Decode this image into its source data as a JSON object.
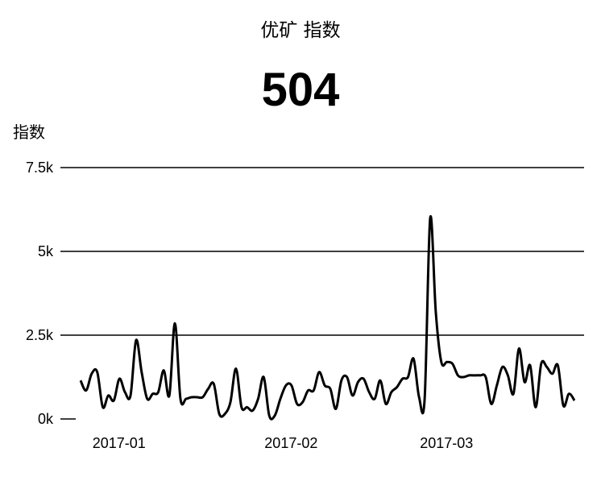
{
  "title": "优矿 指数",
  "headline_value": "504",
  "chart_data": {
    "type": "line",
    "title": "优矿 指数",
    "ylabel": "指数",
    "xlabel": "",
    "y_ticks": [
      {
        "value": 0,
        "label": "0k"
      },
      {
        "value": 2500,
        "label": "2.5k"
      },
      {
        "value": 5000,
        "label": "5k"
      },
      {
        "value": 7500,
        "label": "7.5k"
      }
    ],
    "ylim": [
      0,
      7500
    ],
    "x_ticks": [
      {
        "value": "2017-01-01",
        "label": "2017-01"
      },
      {
        "value": "2017-02-01",
        "label": "2017-02"
      },
      {
        "value": "2017-03-01",
        "label": "2017-03"
      }
    ],
    "xlim": [
      "2016-12-30",
      "2017-03-30"
    ],
    "grid": true,
    "series": [
      {
        "color": "#000000",
        "points": [
          [
            "2016-12-30",
            1150
          ],
          [
            "2016-12-31",
            850
          ],
          [
            "2017-01-01",
            1350
          ],
          [
            "2017-01-02",
            1400
          ],
          [
            "2017-01-03",
            350
          ],
          [
            "2017-01-04",
            700
          ],
          [
            "2017-01-05",
            550
          ],
          [
            "2017-01-06",
            1200
          ],
          [
            "2017-01-07",
            800
          ],
          [
            "2017-01-08",
            700
          ],
          [
            "2017-01-09",
            2350
          ],
          [
            "2017-01-10",
            1400
          ],
          [
            "2017-01-11",
            600
          ],
          [
            "2017-01-12",
            750
          ],
          [
            "2017-01-13",
            800
          ],
          [
            "2017-01-14",
            1450
          ],
          [
            "2017-01-15",
            700
          ],
          [
            "2017-01-16",
            2850
          ],
          [
            "2017-01-17",
            600
          ],
          [
            "2017-01-18",
            600
          ],
          [
            "2017-01-19",
            650
          ],
          [
            "2017-01-20",
            650
          ],
          [
            "2017-01-21",
            650
          ],
          [
            "2017-01-22",
            900
          ],
          [
            "2017-01-23",
            1050
          ],
          [
            "2017-01-24",
            150
          ],
          [
            "2017-01-25",
            150
          ],
          [
            "2017-01-26",
            500
          ],
          [
            "2017-01-27",
            1500
          ],
          [
            "2017-01-28",
            350
          ],
          [
            "2017-01-29",
            350
          ],
          [
            "2017-01-30",
            250
          ],
          [
            "2017-01-31",
            600
          ],
          [
            "2017-02-01",
            1250
          ],
          [
            "2017-02-02",
            100
          ],
          [
            "2017-02-03",
            100
          ],
          [
            "2017-02-04",
            600
          ],
          [
            "2017-02-05",
            1000
          ],
          [
            "2017-02-06",
            1000
          ],
          [
            "2017-02-07",
            450
          ],
          [
            "2017-02-08",
            500
          ],
          [
            "2017-02-09",
            850
          ],
          [
            "2017-02-10",
            850
          ],
          [
            "2017-02-11",
            1400
          ],
          [
            "2017-02-12",
            1000
          ],
          [
            "2017-02-13",
            900
          ],
          [
            "2017-02-14",
            300
          ],
          [
            "2017-02-15",
            1150
          ],
          [
            "2017-02-16",
            1250
          ],
          [
            "2017-02-17",
            700
          ],
          [
            "2017-02-18",
            1100
          ],
          [
            "2017-02-19",
            1200
          ],
          [
            "2017-02-20",
            800
          ],
          [
            "2017-02-21",
            600
          ],
          [
            "2017-02-22",
            1150
          ],
          [
            "2017-02-23",
            450
          ],
          [
            "2017-02-24",
            800
          ],
          [
            "2017-02-25",
            950
          ],
          [
            "2017-02-26",
            1200
          ],
          [
            "2017-02-27",
            1250
          ],
          [
            "2017-02-28",
            1800
          ],
          [
            "2017-03-01",
            650
          ],
          [
            "2017-03-02",
            600
          ],
          [
            "2017-03-03",
            6000
          ],
          [
            "2017-03-04",
            3200
          ],
          [
            "2017-03-05",
            1700
          ],
          [
            "2017-03-06",
            1700
          ],
          [
            "2017-03-07",
            1650
          ],
          [
            "2017-03-08",
            1300
          ],
          [
            "2017-03-09",
            1250
          ],
          [
            "2017-03-10",
            1300
          ],
          [
            "2017-03-11",
            1300
          ],
          [
            "2017-03-12",
            1300
          ],
          [
            "2017-03-13",
            1250
          ],
          [
            "2017-03-14",
            450
          ],
          [
            "2017-03-15",
            1000
          ],
          [
            "2017-03-16",
            1550
          ],
          [
            "2017-03-17",
            1300
          ],
          [
            "2017-03-18",
            750
          ],
          [
            "2017-03-19",
            2100
          ],
          [
            "2017-03-20",
            1100
          ],
          [
            "2017-03-21",
            1600
          ],
          [
            "2017-03-22",
            350
          ],
          [
            "2017-03-23",
            1650
          ],
          [
            "2017-03-24",
            1550
          ],
          [
            "2017-03-25",
            1350
          ],
          [
            "2017-03-26",
            1600
          ],
          [
            "2017-03-27",
            400
          ],
          [
            "2017-03-28",
            750
          ],
          [
            "2017-03-29",
            550
          ]
        ]
      }
    ]
  }
}
